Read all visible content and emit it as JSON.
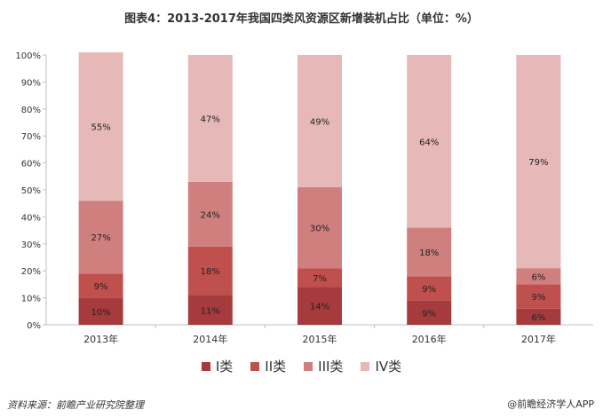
{
  "title": "图表4：2013-2017年我国四类风资源区新增装机占比（单位：%）",
  "source": "资料来源：前瞻产业研究院整理",
  "brand": "@前瞻经济学人APP",
  "chart_data": {
    "type": "bar",
    "stacked": true,
    "categories": [
      "2013年",
      "2014年",
      "2015年",
      "2016年",
      "2017年"
    ],
    "y_ticks": [
      "0%",
      "10%",
      "20%",
      "30%",
      "40%",
      "50%",
      "60%",
      "70%",
      "80%",
      "90%",
      "100%"
    ],
    "ylim": [
      0,
      100
    ],
    "grid": false,
    "legend_position": "bottom",
    "series": [
      {
        "name": "I类",
        "values": [
          10,
          11,
          14,
          9,
          6
        ],
        "labels": [
          "10%",
          "11%",
          "14%",
          "9%",
          "6%"
        ],
        "color": "#a63b3d"
      },
      {
        "name": "II类",
        "values": [
          9,
          18,
          7,
          9,
          9
        ],
        "labels": [
          "9%",
          "18%",
          "7%",
          "9%",
          "9%"
        ],
        "color": "#c0504d"
      },
      {
        "name": "III类",
        "values": [
          27,
          24,
          30,
          18,
          6
        ],
        "labels": [
          "27%",
          "24%",
          "30%",
          "18%",
          "6%"
        ],
        "color": "#d07f7f"
      },
      {
        "name": "IV类",
        "values": [
          55,
          47,
          49,
          64,
          79
        ],
        "labels": [
          "55%",
          "47%",
          "49%",
          "64%",
          "79%"
        ],
        "color": "#e6b9b8"
      }
    ]
  }
}
